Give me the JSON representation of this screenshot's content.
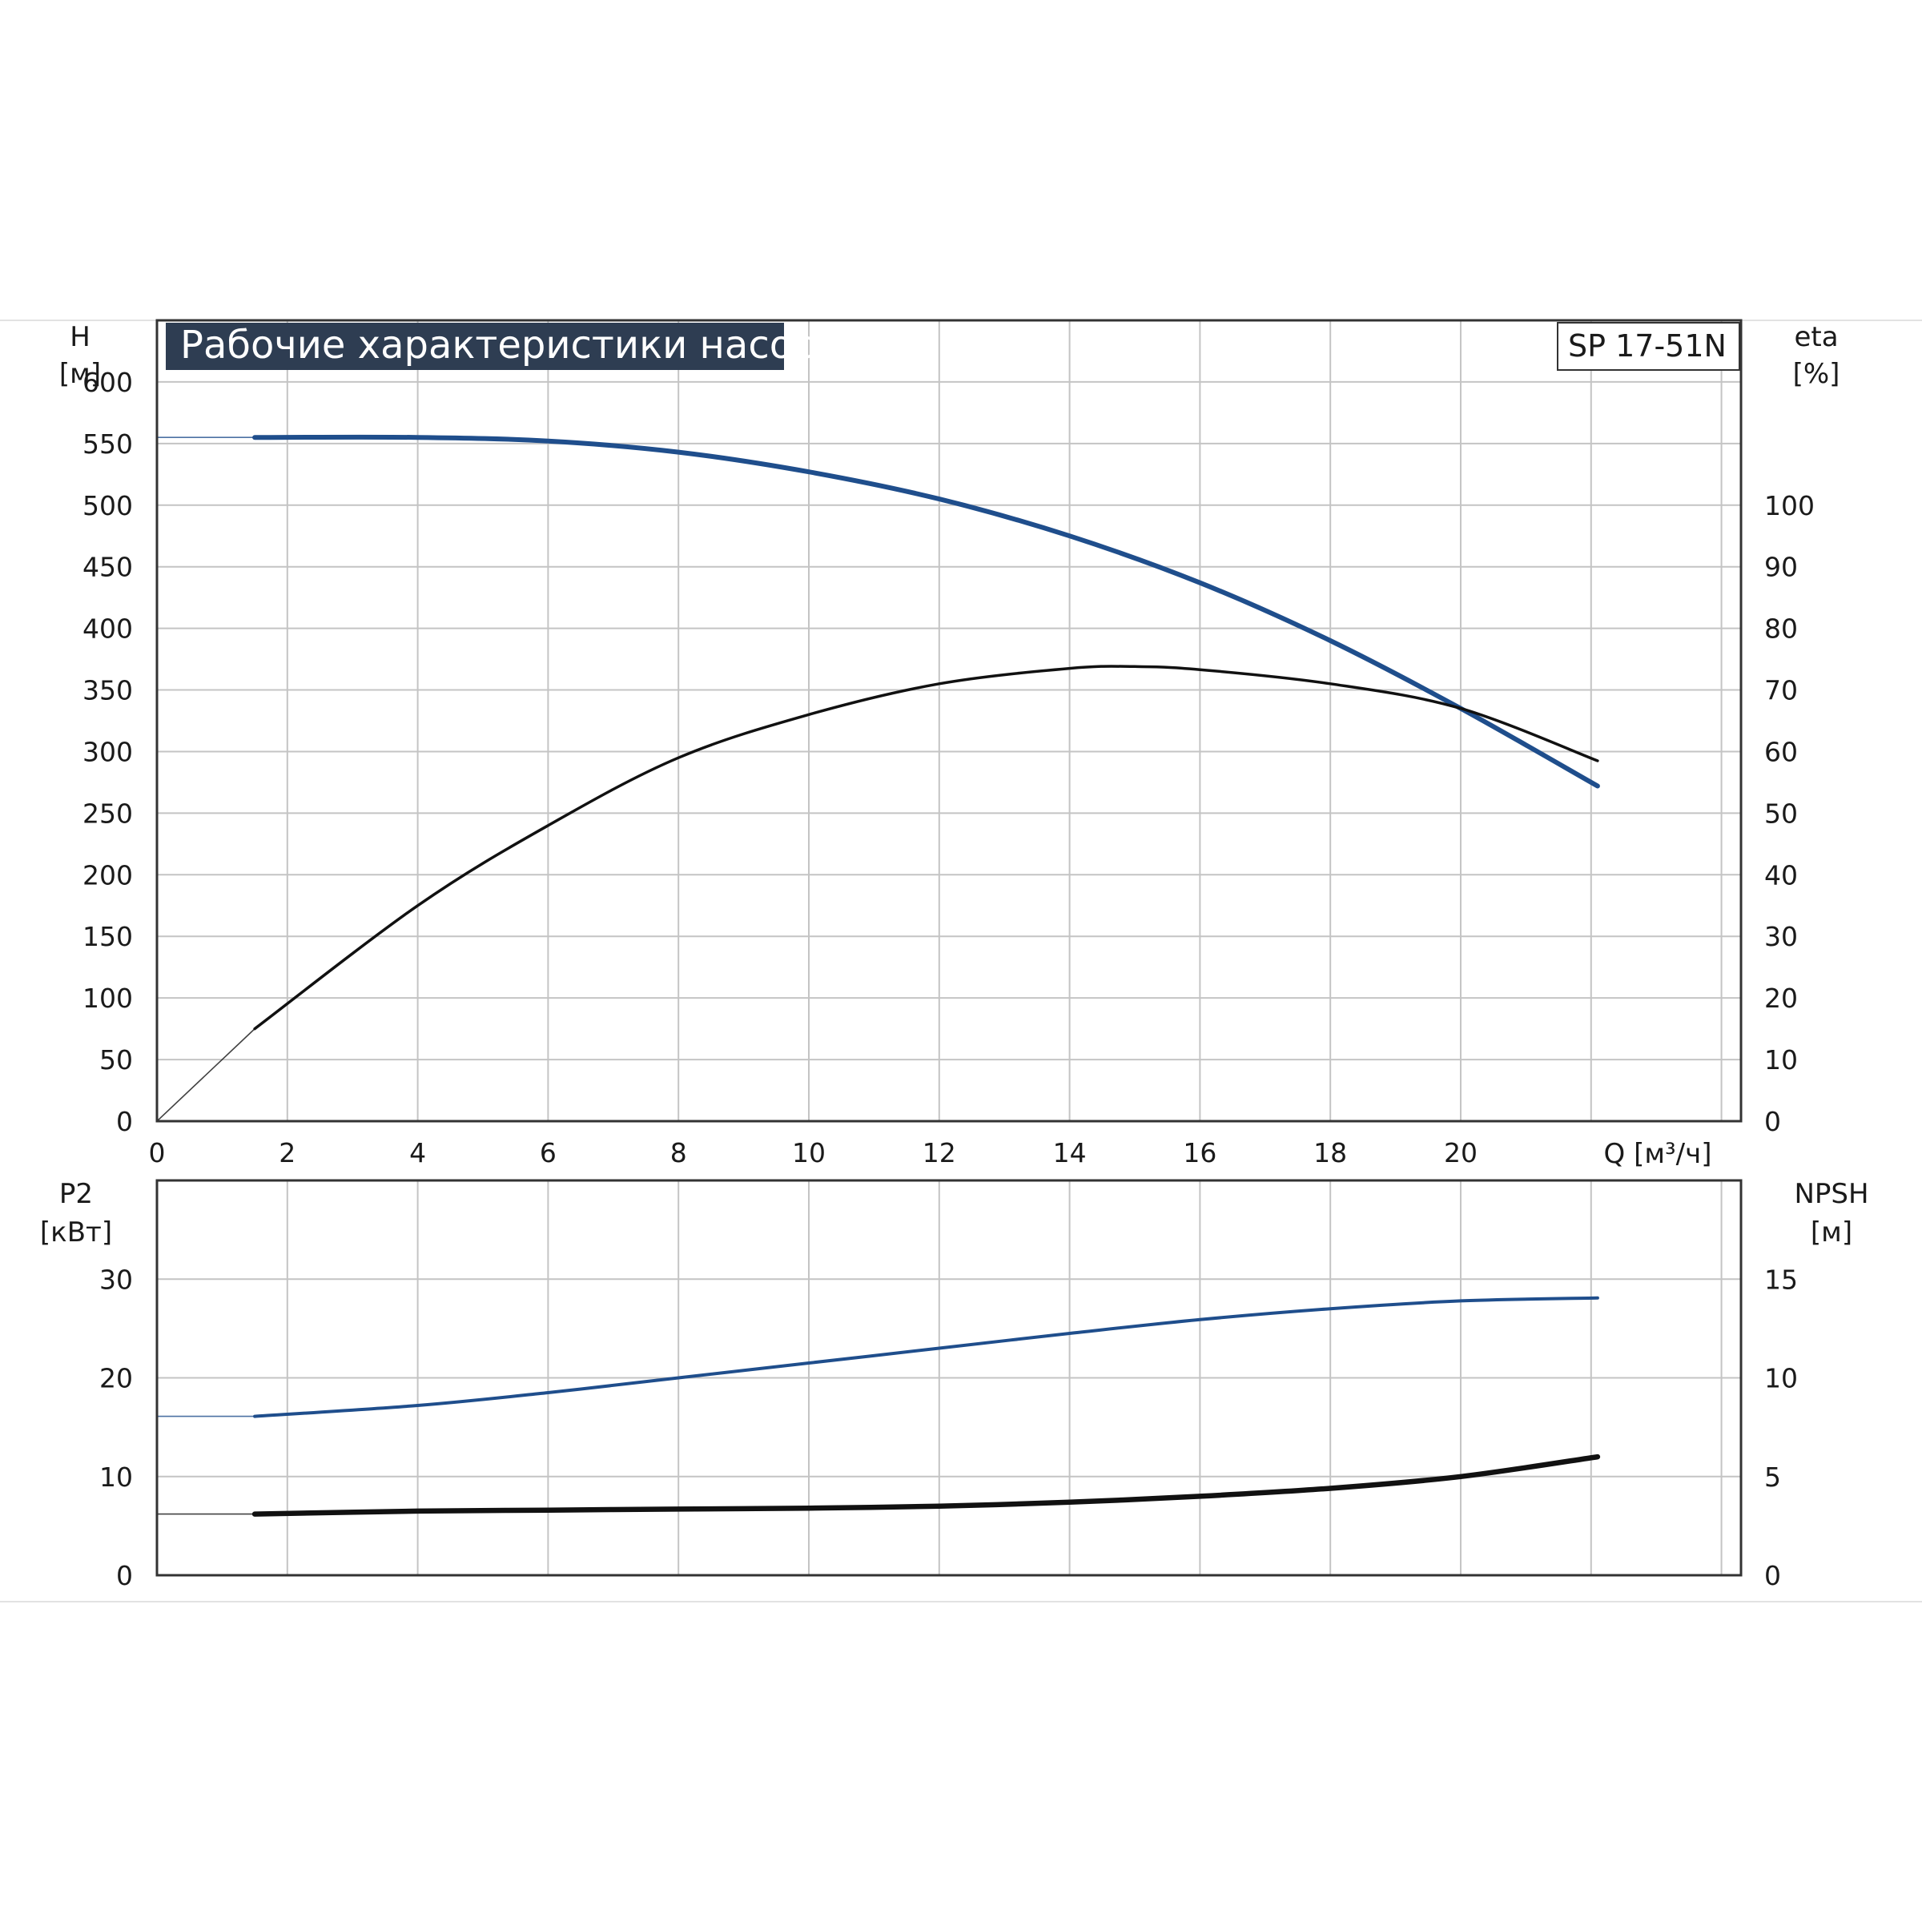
{
  "chart_data": {
    "type": "line",
    "title": "Рабочие характеристики насоса",
    "model": "SP 17-51N",
    "colors": {
      "blue": "#1f4e8c",
      "black": "#111111",
      "grid": "#c4c4c4",
      "frame": "#333333",
      "title_bg": "#2e3d52"
    },
    "x_axis": {
      "label": "Q [м³/ч]",
      "range": [
        0,
        24.3
      ],
      "ticks": [
        "0",
        "2",
        "4",
        "6",
        "8",
        "10",
        "12",
        "14",
        "16",
        "18",
        "20"
      ]
    },
    "top": {
      "left_axis": {
        "label_line1": "H",
        "label_line2": "[м]",
        "range": [
          0,
          650
        ],
        "ticks": [
          "0",
          "50",
          "100",
          "150",
          "200",
          "250",
          "300",
          "350",
          "400",
          "450",
          "500",
          "550",
          "600"
        ]
      },
      "right_axis": {
        "label_line1": "eta",
        "label_line2": "[%]",
        "range": [
          0,
          130
        ],
        "ticks": [
          "0",
          "10",
          "20",
          "30",
          "40",
          "50",
          "60",
          "70",
          "80",
          "90",
          "100"
        ]
      },
      "series": [
        {
          "id": "head",
          "axis": "left",
          "color": "blue",
          "x": [
            0,
            1.5,
            4,
            6,
            8,
            10,
            12,
            14,
            16,
            18,
            20,
            22.1
          ],
          "y": [
            555,
            555,
            555,
            552,
            543,
            527,
            505,
            475,
            437,
            390,
            335,
            272
          ]
        },
        {
          "id": "efficiency",
          "axis": "right",
          "color": "black",
          "x": [
            0,
            1.5,
            4,
            6,
            8,
            10,
            12,
            14,
            15,
            16,
            18,
            20,
            22.1
          ],
          "y": [
            0,
            15,
            35,
            48,
            59,
            66,
            71,
            73.5,
            73.8,
            73.3,
            71,
            67,
            58.5
          ]
        }
      ]
    },
    "bottom": {
      "left_axis": {
        "label_line1": "P2",
        "label_line2": "[кВт]",
        "range": [
          0,
          40
        ],
        "ticks": [
          "0",
          "10",
          "20",
          "30"
        ]
      },
      "right_axis": {
        "label_line1": "NPSH",
        "label_line2": "[м]",
        "range": [
          0,
          20
        ],
        "ticks": [
          "0",
          "5",
          "10",
          "15"
        ]
      },
      "series": [
        {
          "id": "power",
          "axis": "left",
          "color": "blue",
          "x": [
            0,
            1.5,
            4,
            6,
            8,
            10,
            12,
            14,
            16,
            18,
            20,
            22.1
          ],
          "y": [
            16.1,
            16.1,
            17.2,
            18.5,
            20.0,
            21.5,
            23.0,
            24.5,
            25.9,
            27.0,
            27.8,
            28.1
          ]
        },
        {
          "id": "npsh",
          "axis": "right",
          "color": "black",
          "x": [
            0,
            1.5,
            4,
            6,
            8,
            10,
            12,
            14,
            16,
            18,
            20,
            22.1
          ],
          "y": [
            3.1,
            3.1,
            3.25,
            3.3,
            3.35,
            3.4,
            3.5,
            3.7,
            4.0,
            4.4,
            5.0,
            6.0
          ]
        }
      ]
    }
  }
}
